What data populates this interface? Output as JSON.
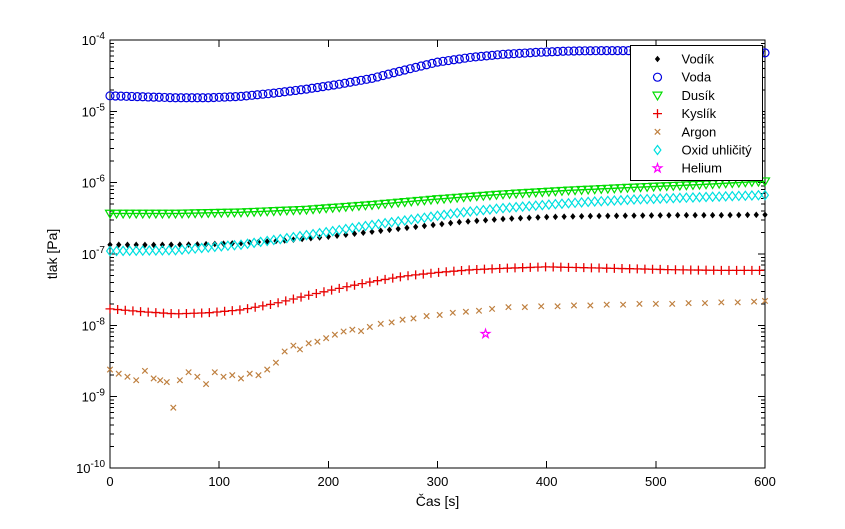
{
  "figure": {
    "title": "",
    "background": "#ffffff"
  },
  "chart_data": {
    "type": "scatter",
    "xlabel": "Čas [s]",
    "ylabel": "tlak [Pa]",
    "x_ticks": [
      0,
      100,
      200,
      300,
      400,
      500,
      600
    ],
    "xlim": [
      0,
      600
    ],
    "y_scale": "log",
    "y_tick_exponents": [
      -4,
      -5,
      -6,
      -7,
      -8,
      -9,
      -10
    ],
    "ylim": [
      1e-10,
      0.0001
    ],
    "grid": false,
    "legend_position": "top-right",
    "axis_color": "#000000",
    "series": [
      {
        "name": "Vodík",
        "color": "#000000",
        "marker": "diamond-filled",
        "marker_size": 5,
        "line": false,
        "marker_step_s": 8,
        "points": [
          [
            0,
            1.35e-07
          ],
          [
            40,
            1.34e-07
          ],
          [
            80,
            1.36e-07
          ],
          [
            120,
            1.42e-07
          ],
          [
            160,
            1.55e-07
          ],
          [
            200,
            1.75e-07
          ],
          [
            240,
            2.05e-07
          ],
          [
            280,
            2.4e-07
          ],
          [
            320,
            2.8e-07
          ],
          [
            360,
            3.1e-07
          ],
          [
            400,
            3.3e-07
          ],
          [
            440,
            3.4e-07
          ],
          [
            480,
            3.45e-07
          ],
          [
            520,
            3.5e-07
          ],
          [
            560,
            3.5e-07
          ],
          [
            600,
            3.55e-07
          ]
        ]
      },
      {
        "name": "Voda",
        "color": "#0000E0",
        "marker": "circle",
        "marker_size": 8,
        "line": false,
        "marker_step_s": 5,
        "points": [
          [
            0,
            1.65e-05
          ],
          [
            30,
            1.6e-05
          ],
          [
            60,
            1.55e-05
          ],
          [
            90,
            1.55e-05
          ],
          [
            120,
            1.62e-05
          ],
          [
            150,
            1.8e-05
          ],
          [
            180,
            2.05e-05
          ],
          [
            210,
            2.4e-05
          ],
          [
            240,
            2.9e-05
          ],
          [
            270,
            3.8e-05
          ],
          [
            300,
            4.9e-05
          ],
          [
            330,
            5.7e-05
          ],
          [
            360,
            6.3e-05
          ],
          [
            390,
            6.7e-05
          ],
          [
            420,
            7e-05
          ],
          [
            450,
            7.1e-05
          ],
          [
            480,
            7.1e-05
          ],
          [
            510,
            7e-05
          ],
          [
            540,
            6.9e-05
          ],
          [
            570,
            6.8e-05
          ],
          [
            600,
            6.6e-05
          ]
        ]
      },
      {
        "name": "Dusík",
        "color": "#00DD00",
        "marker": "triangle-down",
        "marker_size": 9,
        "line": true,
        "marker_step_s": 6,
        "points": [
          [
            0,
            3.7e-07
          ],
          [
            60,
            3.7e-07
          ],
          [
            120,
            3.85e-07
          ],
          [
            180,
            4.2e-07
          ],
          [
            240,
            4.9e-07
          ],
          [
            300,
            5.9e-07
          ],
          [
            360,
            6.9e-07
          ],
          [
            420,
            7.8e-07
          ],
          [
            480,
            8.6e-07
          ],
          [
            540,
            9.4e-07
          ],
          [
            600,
            1.05e-06
          ]
        ]
      },
      {
        "name": "Kyslík",
        "color": "#E80000",
        "marker": "plus",
        "marker_size": 9,
        "line": false,
        "marker_step_s": 7,
        "points": [
          [
            0,
            1.7e-08
          ],
          [
            30,
            1.55e-08
          ],
          [
            60,
            1.45e-08
          ],
          [
            90,
            1.5e-08
          ],
          [
            120,
            1.65e-08
          ],
          [
            150,
            2e-08
          ],
          [
            180,
            2.6e-08
          ],
          [
            210,
            3.3e-08
          ],
          [
            240,
            4.1e-08
          ],
          [
            270,
            4.9e-08
          ],
          [
            300,
            5.5e-08
          ],
          [
            330,
            6e-08
          ],
          [
            360,
            6.3e-08
          ],
          [
            400,
            6.6e-08
          ],
          [
            440,
            6.4e-08
          ],
          [
            480,
            6.2e-08
          ],
          [
            520,
            6e-08
          ],
          [
            560,
            5.9e-08
          ],
          [
            600,
            5.9e-08
          ]
        ]
      },
      {
        "name": "Argon",
        "color": "#BF8040",
        "marker": "x",
        "marker_size": 7,
        "line": false,
        "interpolate": false,
        "points": [
          [
            0,
            2.4e-09
          ],
          [
            8,
            2.1e-09
          ],
          [
            16,
            1.9e-09
          ],
          [
            24,
            1.7e-09
          ],
          [
            32,
            2.3e-09
          ],
          [
            40,
            1.8e-09
          ],
          [
            46,
            1.7e-09
          ],
          [
            52,
            1.6e-09
          ],
          [
            58,
            7e-10
          ],
          [
            64,
            1.7e-09
          ],
          [
            72,
            2.2e-09
          ],
          [
            80,
            1.9e-09
          ],
          [
            88,
            1.5e-09
          ],
          [
            96,
            2.2e-09
          ],
          [
            104,
            1.9e-09
          ],
          [
            112,
            2e-09
          ],
          [
            120,
            1.8e-09
          ],
          [
            128,
            2.1e-09
          ],
          [
            136,
            2e-09
          ],
          [
            144,
            2.4e-09
          ],
          [
            152,
            3e-09
          ],
          [
            160,
            4.3e-09
          ],
          [
            168,
            5.2e-09
          ],
          [
            174,
            4.6e-09
          ],
          [
            182,
            5.6e-09
          ],
          [
            190,
            5.9e-09
          ],
          [
            198,
            6.6e-09
          ],
          [
            206,
            7.4e-09
          ],
          [
            214,
            8.2e-09
          ],
          [
            222,
            8.7e-09
          ],
          [
            230,
            8.3e-09
          ],
          [
            238,
            9.5e-09
          ],
          [
            248,
            1.05e-08
          ],
          [
            258,
            1.1e-08
          ],
          [
            268,
            1.2e-08
          ],
          [
            278,
            1.25e-08
          ],
          [
            290,
            1.35e-08
          ],
          [
            302,
            1.4e-08
          ],
          [
            314,
            1.5e-08
          ],
          [
            326,
            1.55e-08
          ],
          [
            338,
            1.6e-08
          ],
          [
            350,
            1.7e-08
          ],
          [
            365,
            1.8e-08
          ],
          [
            380,
            1.8e-08
          ],
          [
            395,
            1.85e-08
          ],
          [
            410,
            1.85e-08
          ],
          [
            425,
            1.9e-08
          ],
          [
            440,
            1.9e-08
          ],
          [
            455,
            1.95e-08
          ],
          [
            470,
            1.95e-08
          ],
          [
            485,
            2e-08
          ],
          [
            500,
            2e-08
          ],
          [
            515,
            2e-08
          ],
          [
            530,
            2.05e-08
          ],
          [
            545,
            2.05e-08
          ],
          [
            560,
            2.1e-08
          ],
          [
            575,
            2.1e-08
          ],
          [
            590,
            2.15e-08
          ],
          [
            600,
            2.2e-08
          ]
        ]
      },
      {
        "name": "Oxid uhličitý",
        "color": "#00E0E0",
        "marker": "diamond",
        "marker_size": 9,
        "line": false,
        "marker_step_s": 6,
        "points": [
          [
            0,
            1.1e-07
          ],
          [
            60,
            1.13e-07
          ],
          [
            120,
            1.35e-07
          ],
          [
            160,
            1.65e-07
          ],
          [
            200,
            2.05e-07
          ],
          [
            240,
            2.55e-07
          ],
          [
            280,
            3.1e-07
          ],
          [
            320,
            3.8e-07
          ],
          [
            360,
            4.4e-07
          ],
          [
            400,
            4.9e-07
          ],
          [
            440,
            5.4e-07
          ],
          [
            480,
            5.8e-07
          ],
          [
            520,
            6.1e-07
          ],
          [
            560,
            6.4e-07
          ],
          [
            600,
            6.7e-07
          ]
        ]
      },
      {
        "name": "Helium",
        "color": "#FF00FF",
        "marker": "pentagram",
        "marker_size": 9,
        "line": false,
        "interpolate": false,
        "points": [
          [
            344,
            7.6e-09
          ]
        ]
      }
    ],
    "legend": [
      "Vodík",
      "Voda",
      "Dusík",
      "Kyslík",
      "Argon",
      "Oxid uhličitý",
      "Helium"
    ]
  }
}
